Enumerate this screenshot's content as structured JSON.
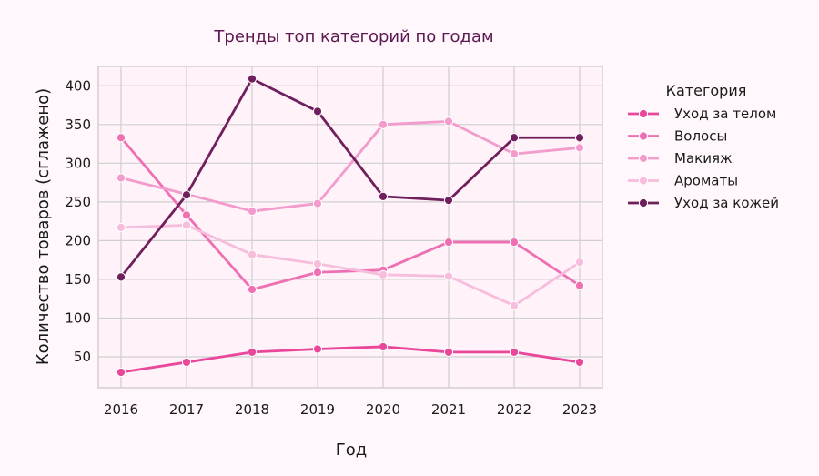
{
  "chart_data": {
    "type": "line",
    "title": "Тренды топ категорий по годам",
    "xlabel": "Год",
    "ylabel": "Количество товаров (сглажено)",
    "x": [
      "2016",
      "2017",
      "2018",
      "2019",
      "2020",
      "2021",
      "2022",
      "2023"
    ],
    "xlim": [
      2016,
      2023
    ],
    "ylim": [
      10,
      425
    ],
    "yticks": [
      50,
      100,
      150,
      200,
      250,
      300,
      350,
      400
    ],
    "grid": true,
    "legend": {
      "title": "Категория",
      "placement": "right"
    },
    "series": [
      {
        "name": "Уход за телом",
        "color": "#e8479a",
        "values": [
          30,
          43,
          56,
          60,
          63,
          56,
          56,
          43
        ]
      },
      {
        "name": "Волосы",
        "color": "#ee6fb2",
        "values": [
          333,
          233,
          137,
          159,
          162,
          198,
          198,
          142
        ]
      },
      {
        "name": "Макияж",
        "color": "#f39bcc",
        "values": [
          281,
          260,
          238,
          248,
          350,
          354,
          312,
          320
        ]
      },
      {
        "name": "Ароматы",
        "color": "#f7bddc",
        "values": [
          217,
          220,
          182,
          170,
          156,
          154,
          116,
          172
        ]
      },
      {
        "name": "Уход за кожей",
        "color": "#6e1f5c",
        "values": [
          153,
          259,
          409,
          367,
          257,
          252,
          333,
          333
        ]
      }
    ]
  }
}
